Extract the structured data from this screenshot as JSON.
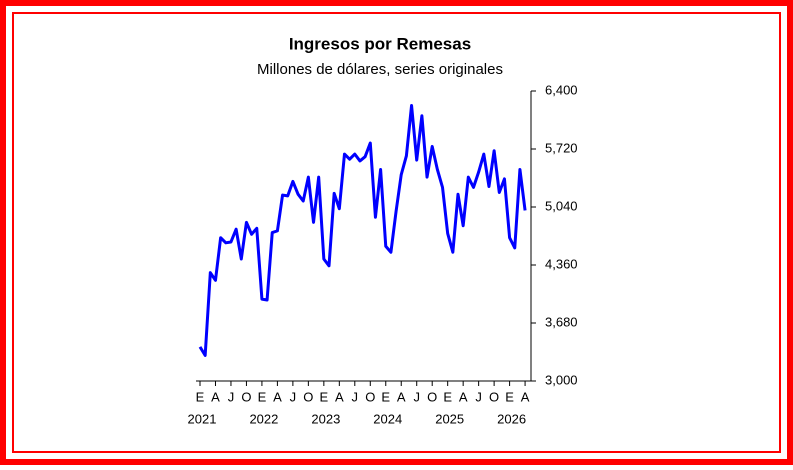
{
  "chart_data": {
    "type": "line",
    "title": "Ingresos por Remesas",
    "subtitle": "Millones de dólares, series originales",
    "categories": [
      "E",
      null,
      null,
      "A",
      null,
      null,
      "J",
      null,
      null,
      "O",
      null,
      null,
      "E",
      null,
      null,
      "A",
      null,
      null,
      "J",
      null,
      null,
      "O",
      null,
      null,
      "E",
      null,
      null,
      "A",
      null,
      null,
      "J",
      null,
      null,
      "O",
      null,
      null,
      "E",
      null,
      null,
      "A",
      null,
      null,
      "J",
      null,
      null,
      "O",
      null,
      null,
      "E",
      null,
      null,
      "A",
      null,
      null,
      "J",
      null,
      null,
      "O",
      null,
      null,
      "E",
      null,
      null,
      "A"
    ],
    "years": [
      "2021",
      "2022",
      "2023",
      "2024",
      "2025",
      "2026"
    ],
    "values": [
      3400,
      3300,
      4270,
      4180,
      4680,
      4620,
      4630,
      4780,
      4430,
      4860,
      4720,
      4790,
      3960,
      3950,
      4740,
      4760,
      5180,
      5170,
      5340,
      5190,
      5110,
      5390,
      4860,
      5390,
      4430,
      4350,
      5200,
      5020,
      5660,
      5600,
      5660,
      5580,
      5630,
      5790,
      4920,
      5480,
      4580,
      4510,
      4990,
      5420,
      5640,
      6230,
      5590,
      6110,
      5390,
      5750,
      5480,
      5270,
      4730,
      4510,
      5190,
      4820,
      5390,
      5270,
      5450,
      5660,
      5280,
      5700,
      5210,
      5370,
      4680,
      4560,
      5480,
      5000
    ],
    "color": "#0000ff",
    "ylim": [
      3000,
      6400
    ],
    "yticks": [
      {
        "value": 3000,
        "label": "3,000"
      },
      {
        "value": 3680,
        "label": "3,680"
      },
      {
        "value": 4360,
        "label": "4,360"
      },
      {
        "value": 5040,
        "label": "5,040"
      },
      {
        "value": 5720,
        "label": "5,720"
      },
      {
        "value": 6400,
        "label": "6,400"
      }
    ],
    "y_axis_side": "right"
  }
}
